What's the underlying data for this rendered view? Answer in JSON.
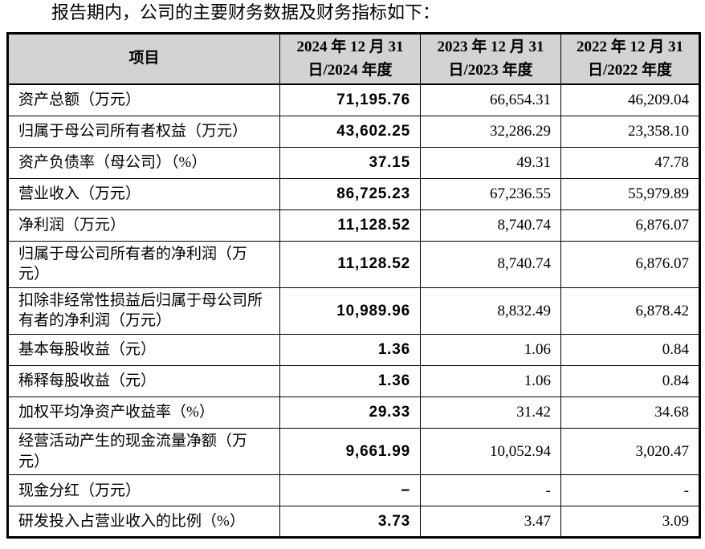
{
  "page": {
    "title": "报告期内，公司的主要财务数据及财务指标如下："
  },
  "colors": {
    "header_bg": "#d3d3d3",
    "border": "#000000",
    "text": "#000000"
  },
  "table": {
    "columns": [
      "项目",
      "2024 年 12 月 31\n日/2024 年度",
      "2023 年 12 月 31\n日/2023 年度",
      "2022 年 12 月 31\n日/2022 年度"
    ],
    "rows": [
      {
        "label": "资产总额（万元）",
        "v2024": "71,195.76",
        "v2023": "66,654.31",
        "v2022": "46,209.04"
      },
      {
        "label": "归属于母公司所有者权益（万元）",
        "v2024": "43,602.25",
        "v2023": "32,286.29",
        "v2022": "23,358.10"
      },
      {
        "label": "资产负债率（母公司）（%）",
        "v2024": "37.15",
        "v2023": "49.31",
        "v2022": "47.78"
      },
      {
        "label": "营业收入（万元）",
        "v2024": "86,725.23",
        "v2023": "67,236.55",
        "v2022": "55,979.89"
      },
      {
        "label": "净利润（万元）",
        "v2024": "11,128.52",
        "v2023": "8,740.74",
        "v2022": "6,876.07"
      },
      {
        "label": "归属于母公司所有者的净利润（万元）",
        "v2024": "11,128.52",
        "v2023": "8,740.74",
        "v2022": "6,876.07"
      },
      {
        "label": "扣除非经常性损益后归属于母公司所有者的净利润（万元）",
        "v2024": "10,989.96",
        "v2023": "8,832.49",
        "v2022": "6,878.42"
      },
      {
        "label": "基本每股收益（元）",
        "v2024": "1.36",
        "v2023": "1.06",
        "v2022": "0.84"
      },
      {
        "label": "稀释每股收益（元）",
        "v2024": "1.36",
        "v2023": "1.06",
        "v2022": "0.84"
      },
      {
        "label": "加权平均净资产收益率（%）",
        "v2024": "29.33",
        "v2023": "31.42",
        "v2022": "34.68"
      },
      {
        "label": "经营活动产生的现金流量净额（万元）",
        "v2024": "9,661.99",
        "v2023": "10,052.94",
        "v2022": "3,020.47"
      },
      {
        "label": "现金分红（万元）",
        "v2024": "−",
        "v2023": "-",
        "v2022": "-"
      },
      {
        "label": "研发投入占营业收入的比例（%）",
        "v2024": "3.73",
        "v2023": "3.47",
        "v2022": "3.09"
      }
    ]
  }
}
